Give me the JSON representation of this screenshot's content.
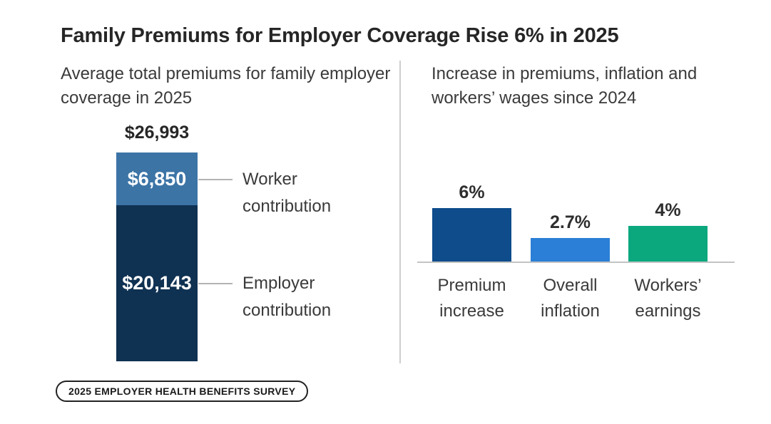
{
  "title": "Family Premiums for Employer Coverage Rise 6% in 2025",
  "badge": {
    "label": "2025 EMPLOYER HEALTH BENEFITS SURVEY"
  },
  "chart_data": [
    {
      "type": "bar",
      "subtype": "stacked-single-column",
      "title": "Average total premiums for family employer coverage in 2025",
      "unit": "USD",
      "total": 26993,
      "total_label": "$26,993",
      "series": [
        {
          "name": "Employer contribution",
          "values": [
            20143
          ],
          "data_label": "$20,143",
          "color": "#0F3152"
        },
        {
          "name": "Worker contribution",
          "values": [
            6850
          ],
          "data_label": "$6,850",
          "color": "#3C74A6"
        }
      ],
      "legend": "callout-labels-right",
      "axes": "none",
      "callout_line_color": "#B3B3B3"
    },
    {
      "type": "bar",
      "title": "Increase in premiums, inflation and workers’ wages since 2024",
      "categories": [
        "Premium increase",
        "Overall inflation",
        "Workers’ earnings"
      ],
      "values": [
        6,
        2.7,
        4
      ],
      "value_labels": [
        "6%",
        "2.7%",
        "4%"
      ],
      "colors": [
        "#0E4C8C",
        "#2B7FD6",
        "#0BA87E"
      ],
      "ylim": [
        0,
        6.5
      ],
      "grid": false,
      "legend": false,
      "baseline_color": "#C4C4C4"
    }
  ]
}
